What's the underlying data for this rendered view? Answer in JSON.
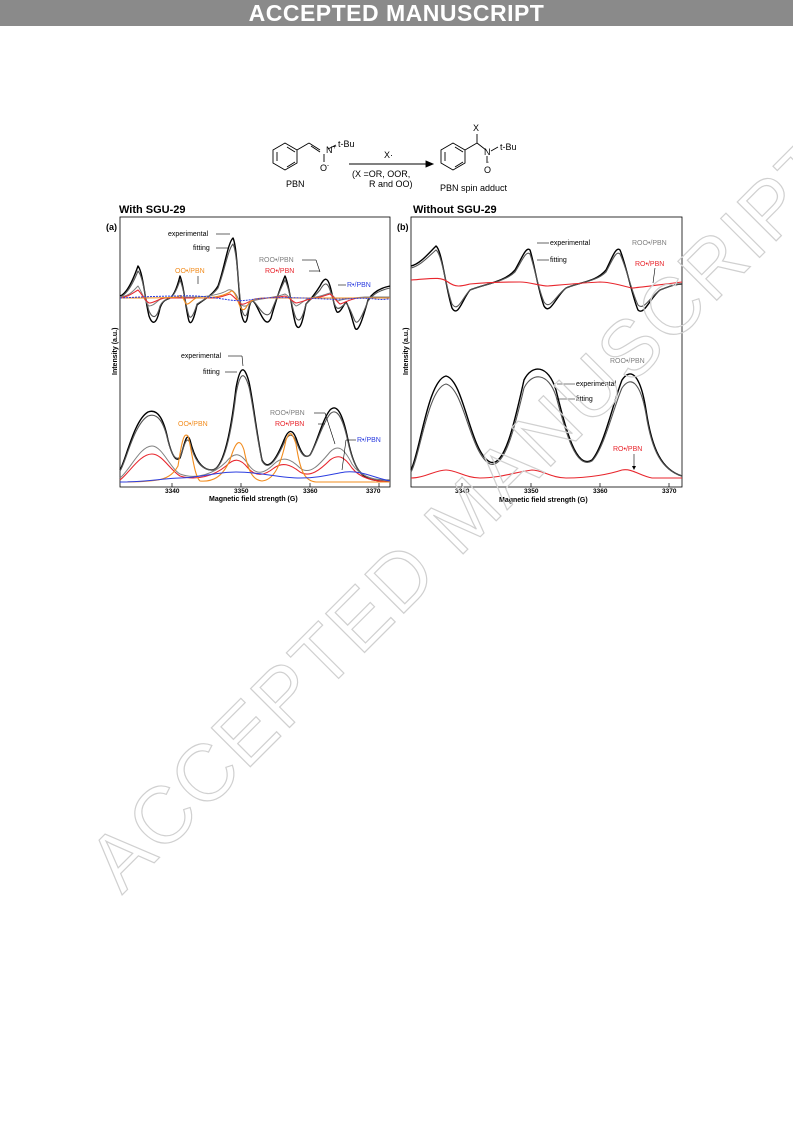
{
  "banner": {
    "text": "ACCEPTED MANUSCRIPT"
  },
  "watermark": {
    "text": "ACCEPTED MANUSCRIPT",
    "color": "#d9d9d9"
  },
  "scheme": {
    "reactant_name": "PBN",
    "product_name": "PBN spin adduct",
    "tbu": "t-Bu",
    "n_plus": "N",
    "o_minus": "O",
    "reagent": "X·",
    "conditions_1": "(X =OR, OOR,",
    "conditions_2": "R and OO)",
    "product_x": "X"
  },
  "panel_a": {
    "heading": "With SGU-29",
    "tag": "(a)",
    "ylabel": "Intensity (a.u.)",
    "xlabel": "Magnetic field strength (G)",
    "ticks": [
      "3340",
      "3350",
      "3360",
      "3370"
    ],
    "labels": {
      "experimental_top": "experimental",
      "fitting_top": "fitting",
      "roo": "ROO•/PBN",
      "ro": "RO•/PBN",
      "oo": "OO•/PBN",
      "r": "R•/PBN",
      "experimental_bottom": "experimental",
      "fitting_bottom": "fitting",
      "oo_bottom": "OO•/PBN",
      "roo_bottom": "ROO•/PBN",
      "ro_bottom": "RO•/PBN",
      "r_bottom": "R•/PBN"
    }
  },
  "panel_b": {
    "heading": "Without SGU-29",
    "tag": "(b)",
    "ylabel": "Intensity (a.u.)",
    "xlabel": "Magnetic field strength (G)",
    "ticks": [
      "3340",
      "3350",
      "3360",
      "3370"
    ],
    "labels": {
      "experimental_top": "experimental",
      "fitting_top": "fitting",
      "roo": "ROO•/PBN",
      "ro": "RO•/PBN",
      "roo_bottom": "ROO•/PBN",
      "experimental_bottom": "experimental",
      "fitting_bottom": "fitting",
      "ro_bottom": "RO•/PBN"
    }
  },
  "colors": {
    "orange": "#f28c1e",
    "red": "#e8262d",
    "blue": "#2b3de0",
    "gray": "#808080"
  }
}
